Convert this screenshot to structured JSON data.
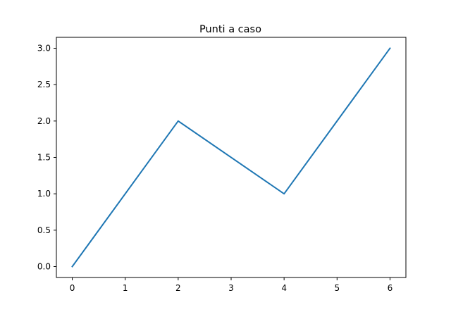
{
  "chart_data": {
    "type": "line",
    "title": "Punti a caso",
    "xlabel": "",
    "ylabel": "",
    "xlim": [
      -0.3,
      6.3
    ],
    "ylim": [
      -0.15,
      3.15
    ],
    "xticks": [
      0,
      1,
      2,
      3,
      4,
      5,
      6
    ],
    "xtick_labels": [
      "0",
      "1",
      "2",
      "3",
      "4",
      "5",
      "6"
    ],
    "yticks": [
      0.0,
      0.5,
      1.0,
      1.5,
      2.0,
      2.5,
      3.0
    ],
    "ytick_labels": [
      "0.0",
      "0.5",
      "1.0",
      "1.5",
      "2.0",
      "2.5",
      "3.0"
    ],
    "grid": false,
    "legend": "none",
    "series": [
      {
        "x": [
          0,
          2,
          4,
          6
        ],
        "y": [
          0,
          2,
          1,
          3
        ],
        "color": "#1f77b4"
      }
    ]
  }
}
